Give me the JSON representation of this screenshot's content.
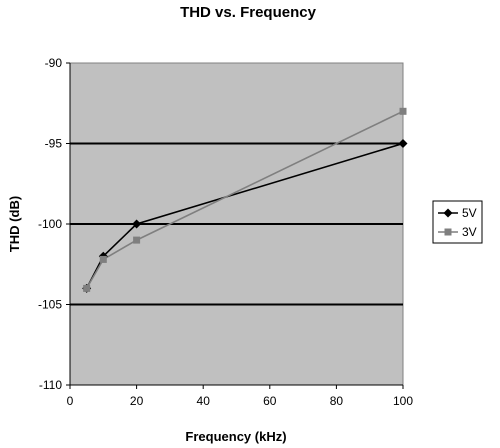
{
  "chart_data": {
    "type": "line",
    "title": "THD vs. Frequency",
    "xlabel": "Frequency (kHz)",
    "ylabel": "THD (dB)",
    "xlim": [
      0,
      100
    ],
    "ylim": [
      -110,
      -90
    ],
    "xticks": [
      0,
      20,
      40,
      60,
      80,
      100
    ],
    "yticks": [
      -90,
      -95,
      -100,
      -105,
      -110
    ],
    "grid": "horizontal major gridlines at -95, -100, -105",
    "plot_background": "#c0c0c0",
    "legend_position": "right",
    "series": [
      {
        "name": "5V",
        "marker": "diamond",
        "color": "#000000",
        "x": [
          5,
          10,
          20,
          100
        ],
        "y": [
          -104,
          -102,
          -100,
          -95
        ]
      },
      {
        "name": "3V",
        "marker": "square",
        "color": "#7f7f7f",
        "x": [
          5,
          10,
          20,
          100
        ],
        "y": [
          -104,
          -102.2,
          -101,
          -93
        ]
      }
    ]
  }
}
